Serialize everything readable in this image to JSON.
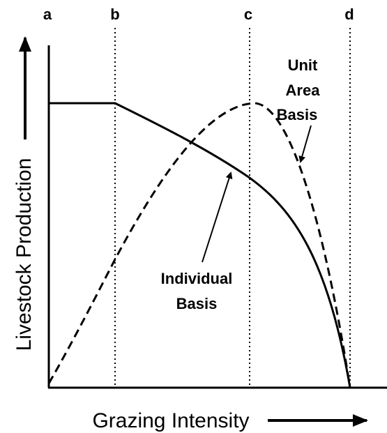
{
  "markers": [
    "a",
    "b",
    "c",
    "d"
  ],
  "annotations": {
    "unit_area": [
      "Unit",
      "Area",
      "Basis"
    ],
    "individual": [
      "Individual",
      "Basis"
    ]
  },
  "axes": {
    "x_label": "Grazing Intensity",
    "y_label": "Livestock Production"
  }
}
